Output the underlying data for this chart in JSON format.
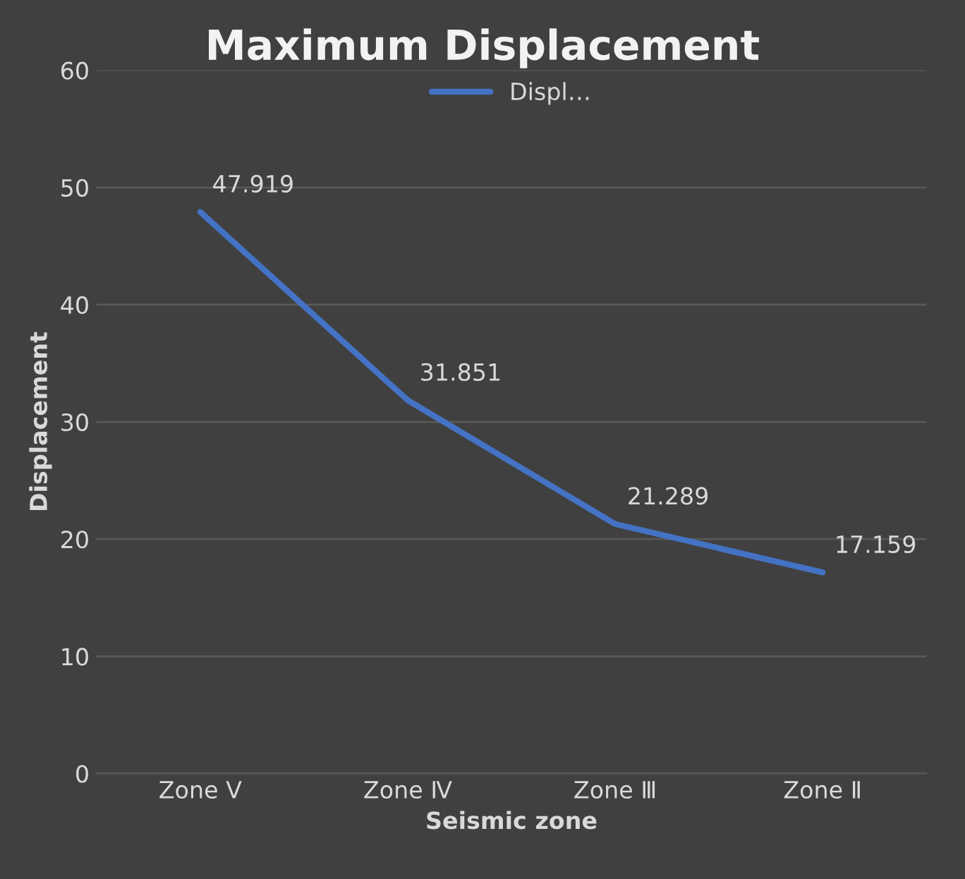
{
  "chart_data": {
    "type": "line",
    "title": "Maximum Displacement",
    "xlabel": "Seismic zone",
    "ylabel": "Displacement",
    "categories": [
      "Zone Ⅴ",
      "Zone Ⅳ",
      "Zone Ⅲ",
      "Zone Ⅱ"
    ],
    "series": [
      {
        "name": "Displ…",
        "color": "#4472c4",
        "values": [
          47.919,
          31.851,
          21.289,
          17.159
        ]
      }
    ],
    "ylim": [
      0,
      60
    ],
    "yticks": [
      0,
      10,
      20,
      30,
      40,
      50,
      60
    ],
    "grid": "y",
    "legend": "top",
    "data_labels": true,
    "marker": "none",
    "line_style": "solid"
  }
}
